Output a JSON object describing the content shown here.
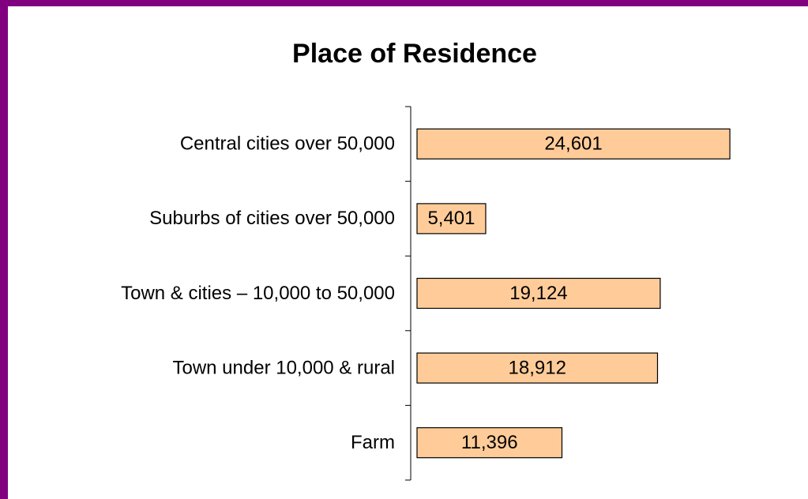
{
  "chart_data": {
    "type": "hbar",
    "title": "Place of Residence",
    "categories": [
      "Central cities over 50,000",
      "Suburbs of cities over 50,000",
      "Town & cities – 10,000 to 50,000",
      "Town under 10,000 & rural",
      "Farm"
    ],
    "values": [
      24601,
      5401,
      19124,
      18912,
      11396
    ],
    "value_labels": [
      "24,601",
      "5,401",
      "19,124",
      "18,912",
      "11,396"
    ],
    "color": "#ffcc99",
    "xlim": [
      0,
      30000
    ]
  }
}
